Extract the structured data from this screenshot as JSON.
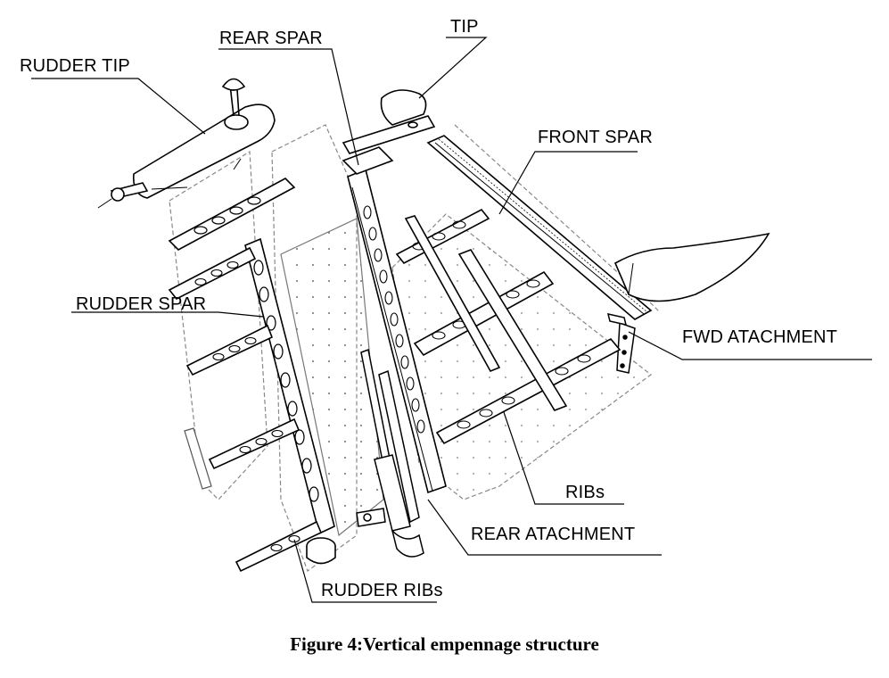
{
  "labels": {
    "rudder_tip": "RUDDER TIP",
    "rear_spar": "REAR SPAR",
    "tip": "TIP",
    "front_spar": "FRONT SPAR",
    "rudder_spar": "RUDDER SPAR",
    "fwd_attachment": "FWD ATACHMENT",
    "ribs": "RIBs",
    "rear_attachment": "REAR ATACHMENT",
    "rudder_ribs": "RUDDER RIBs"
  },
  "caption": "Figure 4:Vertical empennage structure"
}
